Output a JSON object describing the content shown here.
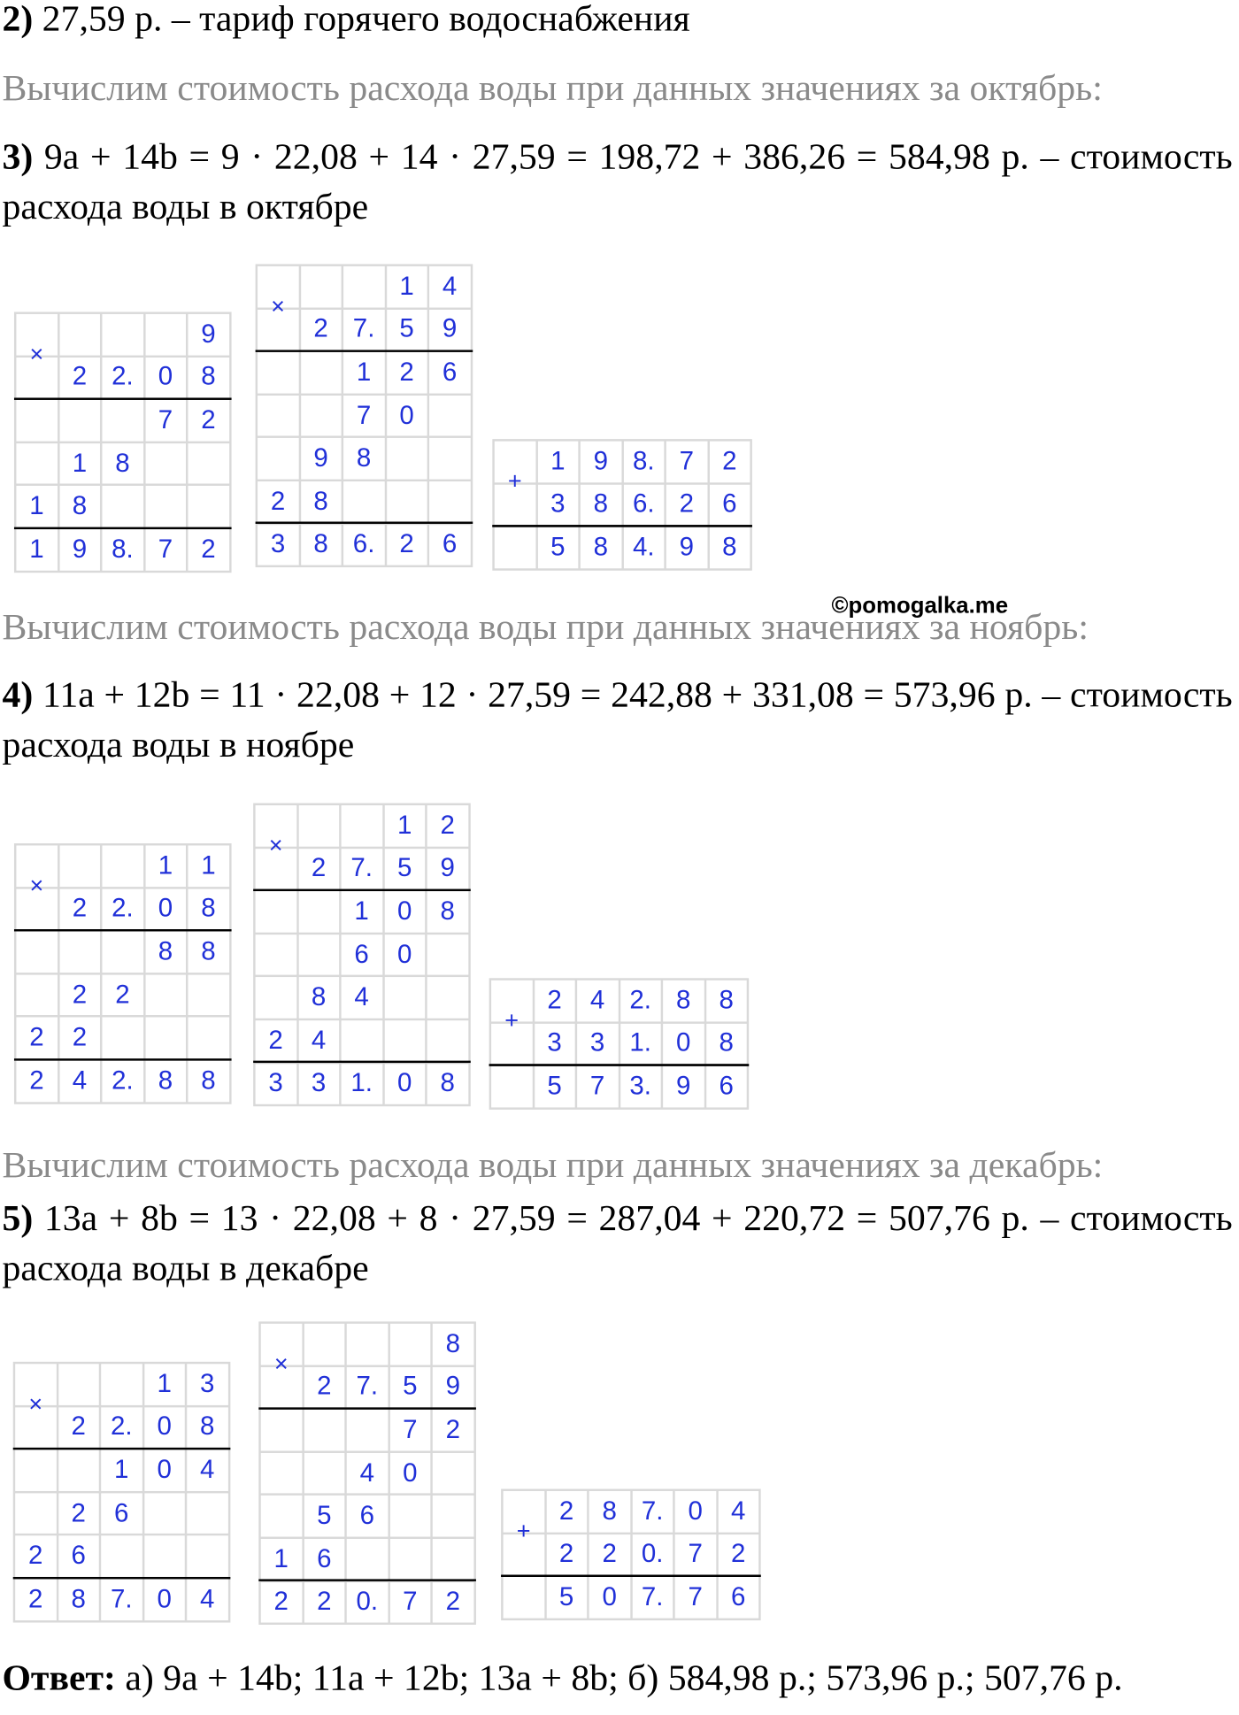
{
  "intro": {
    "label": "2)",
    "text": " 27,59 р. – тариф горячего водоснабжения"
  },
  "sections": [
    {
      "heading": "Вычислим стоимость расхода воды при данных значениях за октябрь:",
      "label": "3)",
      "text": " 9a + 14b = 9 · 22,08 + 14 · 27,59 = 198,72 + 386,26 = 584,98 р. – стоимость расхода воды в октябре",
      "calculations": [
        {
          "sign": "×",
          "rows": [
            [
              null,
              null,
              null,
              null,
              "9"
            ],
            [
              null,
              "2",
              "2.",
              "0",
              "8"
            ],
            [
              null,
              null,
              null,
              "7",
              "2"
            ],
            [
              null,
              "1",
              "8",
              null,
              null
            ],
            [
              "1",
              "8",
              null,
              null,
              null
            ],
            [
              "1",
              "9",
              "8.",
              "7",
              "2"
            ]
          ]
        },
        {
          "sign": "×",
          "rows": [
            [
              null,
              null,
              null,
              "1",
              "4"
            ],
            [
              null,
              "2",
              "7.",
              "5",
              "9"
            ],
            [
              null,
              null,
              "1",
              "2",
              "6"
            ],
            [
              null,
              null,
              "7",
              "0",
              null
            ],
            [
              null,
              "9",
              "8",
              null,
              null
            ],
            [
              "2",
              "8",
              null,
              null,
              null
            ],
            [
              "3",
              "8",
              "6.",
              "2",
              "6"
            ]
          ]
        },
        {
          "sign": "+",
          "rows": [
            [
              null,
              "1",
              "9",
              "8.",
              "7",
              "2"
            ],
            [
              null,
              "3",
              "8",
              "6.",
              "2",
              "6"
            ],
            [
              null,
              "5",
              "8",
              "4.",
              "9",
              "8"
            ]
          ]
        }
      ]
    },
    {
      "heading": "Вычислим стоимость расхода воды при данных значениях за ноябрь:",
      "label": "4)",
      "text": " 11a + 12b = 11 · 22,08 + 12 · 27,59 = 242,88 + 331,08 = 573,96 р. – стоимость расхода воды в ноябре",
      "calculations": [
        {
          "sign": "×",
          "rows": [
            [
              null,
              null,
              null,
              "1",
              "1"
            ],
            [
              null,
              "2",
              "2.",
              "0",
              "8"
            ],
            [
              null,
              null,
              null,
              "8",
              "8"
            ],
            [
              null,
              "2",
              "2",
              null,
              null
            ],
            [
              "2",
              "2",
              null,
              null,
              null
            ],
            [
              "2",
              "4",
              "2.",
              "8",
              "8"
            ]
          ]
        },
        {
          "sign": "×",
          "rows": [
            [
              null,
              null,
              null,
              "1",
              "2"
            ],
            [
              null,
              "2",
              "7.",
              "5",
              "9"
            ],
            [
              null,
              null,
              "1",
              "0",
              "8"
            ],
            [
              null,
              null,
              "6",
              "0",
              null
            ],
            [
              null,
              "8",
              "4",
              null,
              null
            ],
            [
              "2",
              "4",
              null,
              null,
              null
            ],
            [
              "3",
              "3",
              "1.",
              "0",
              "8"
            ]
          ]
        },
        {
          "sign": "+",
          "rows": [
            [
              null,
              "2",
              "4",
              "2.",
              "8",
              "8"
            ],
            [
              null,
              "3",
              "3",
              "1.",
              "0",
              "8"
            ],
            [
              null,
              "5",
              "7",
              "3.",
              "9",
              "6"
            ]
          ]
        }
      ]
    },
    {
      "heading": "Вычислим стоимость расхода воды при данных значениях за декабрь:",
      "label": "5)",
      "text": " 13a + 8b = 13 · 22,08 + 8 · 27,59 = 287,04 + 220,72 = 507,76 р. – стоимость расхода воды в декабре",
      "calculations": [
        {
          "sign": "×",
          "rows": [
            [
              null,
              null,
              null,
              "1",
              "3"
            ],
            [
              null,
              "2",
              "2.",
              "0",
              "8"
            ],
            [
              null,
              null,
              "1",
              "0",
              "4"
            ],
            [
              null,
              "2",
              "6",
              null,
              null
            ],
            [
              "2",
              "6",
              null,
              null,
              null
            ],
            [
              "2",
              "8",
              "7.",
              "0",
              "4"
            ]
          ]
        },
        {
          "sign": "×",
          "rows": [
            [
              null,
              null,
              null,
              null,
              "8"
            ],
            [
              null,
              "2",
              "7.",
              "5",
              "9"
            ],
            [
              null,
              null,
              null,
              "7",
              "2"
            ],
            [
              null,
              null,
              "4",
              "0",
              null
            ],
            [
              null,
              "5",
              "6",
              null,
              null
            ],
            [
              "1",
              "6",
              null,
              null,
              null
            ],
            [
              "2",
              "2",
              "0.",
              "7",
              "2"
            ]
          ]
        },
        {
          "sign": "+",
          "rows": [
            [
              null,
              "2",
              "8",
              "7.",
              "0",
              "4"
            ],
            [
              null,
              "2",
              "2",
              "0.",
              "7",
              "2"
            ],
            [
              null,
              "5",
              "0",
              "7.",
              "7",
              "6"
            ]
          ]
        }
      ]
    }
  ],
  "watermark": "©pomogalka.me",
  "answer": {
    "label": "Ответ:",
    "text": " а) 9a + 14b; 11a + 12b; 13a + 8b; б) 584,98 р.; 573,96 р.; 507,76 р."
  }
}
